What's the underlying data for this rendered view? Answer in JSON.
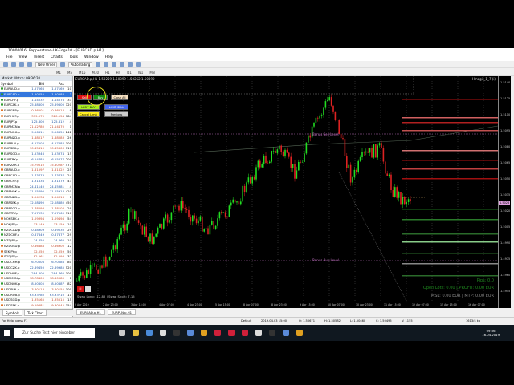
{
  "window": {
    "title": "10000016: Pepperstone-UK-Edge10 - [EURCAD.p,H1]"
  },
  "menu": [
    "File",
    "View",
    "Insert",
    "Charts",
    "Tools",
    "Window",
    "Help"
  ],
  "toolbar": {
    "new_order": "New Order",
    "autotrading": "AutoTrading",
    "timeframes": [
      "M1",
      "M5",
      "M15",
      "M30",
      "H1",
      "H4",
      "D1",
      "W1",
      "MN"
    ]
  },
  "market_watch": {
    "title": "Market Watch: 09:36:20",
    "columns": [
      "Symbol",
      "Bid",
      "Ask",
      "!"
    ],
    "rows": [
      [
        "EURAUD.p",
        "1.57066",
        "1.57169",
        "10",
        "up"
      ],
      [
        "EURCAD.p",
        "1.50055",
        "1.50288",
        "3",
        "up"
      ],
      [
        "EURCHF.p",
        "1.14032",
        "1.14076",
        "33",
        "up"
      ],
      [
        "EURCZK.p",
        "25.68600",
        "25.69600",
        "120",
        "up"
      ],
      [
        "EURGBP.p",
        "0.86501",
        "0.86518",
        "9",
        "down"
      ],
      [
        "EURHUF.p",
        "319.970",
        "320.154",
        "184",
        "down"
      ],
      [
        "EURJPY.p",
        "125.800",
        "125.812",
        "4",
        "up"
      ],
      [
        "EURMXN.p",
        "21.12780",
        "21.14470",
        "1",
        "down"
      ],
      [
        "EURNOK.p",
        "9.56611",
        "9.56655",
        "242",
        "up"
      ],
      [
        "EURNZD.p",
        "1.68017",
        "1.68083",
        "26",
        "down"
      ],
      [
        "EURPLN.p",
        "4.27504",
        "4.27684",
        "100",
        "up"
      ],
      [
        "EURSEK.p",
        "10.45410",
        "10.45603",
        "111",
        "down"
      ],
      [
        "EURSGD.p",
        "1.53346",
        "1.53374",
        "15",
        "up"
      ],
      [
        "EURTRY.p",
        "6.54785",
        "6.55877",
        "200",
        "up"
      ],
      [
        "EURZAR.p",
        "15.79510",
        "15.80287",
        "477",
        "down"
      ],
      [
        "GBPAUD.p",
        "1.81597",
        "1.81622",
        "25",
        "down"
      ],
      [
        "GBPCAD.p",
        "1.73773",
        "1.73737",
        "24",
        "up"
      ],
      [
        "GBPCHF.p",
        "1.31836",
        "1.31879",
        "43",
        "up"
      ],
      [
        "GBPMXN.p",
        "24.41140",
        "24.45381",
        "4",
        "up"
      ],
      [
        "GBPNOK.p",
        "11.05490",
        "11.05918",
        "420",
        "up"
      ],
      [
        "GBPNZD.p",
        "1.94234",
        "1.94316",
        "1",
        "down"
      ],
      [
        "GBPSEK.p",
        "12.08490",
        "12.08880",
        "450",
        "up"
      ],
      [
        "GBPSGD.p",
        "1.78093",
        "1.78104",
        "29",
        "down"
      ],
      [
        "GBPTRY.p",
        "7.57030",
        "7.57560",
        "310",
        "up"
      ],
      [
        "NOKSEK.p",
        "1.09394",
        "1.09498",
        "54",
        "down"
      ],
      [
        "NOKJPY.p",
        "13.149",
        "13.159",
        "10",
        "down"
      ],
      [
        "NZDCAD.p",
        "0.88909",
        "0.89030",
        "29",
        "up"
      ],
      [
        "NZDCHF.p",
        "0.67849",
        "0.67877",
        "29",
        "up"
      ],
      [
        "NZDJPY.p",
        "74.850",
        "74.860",
        "10",
        "up"
      ],
      [
        "NZDUSD.p",
        "0.66888",
        "0.66900",
        "12",
        "down"
      ],
      [
        "SEKJPY.p",
        "12.050",
        "12.059",
        "50",
        "down"
      ],
      [
        "SGDJPY.p",
        "82.561",
        "82.593",
        "32",
        "down"
      ],
      [
        "USDCNH.p",
        "6.70006",
        "6.70086",
        "80",
        "up"
      ],
      [
        "USDCZK.p",
        "22.69450",
        "22.69985",
        "520",
        "up"
      ],
      [
        "USDHUF.p",
        "284.600",
        "284.760",
        "100",
        "up"
      ],
      [
        "USDMXN.p",
        "18.78400",
        "18.80080",
        "1",
        "down"
      ],
      [
        "USDNOK.p",
        "8.50605",
        "8.50687",
        "82",
        "up"
      ],
      [
        "USDPLN.p",
        "3.80113",
        "3.80155",
        "100",
        "down"
      ],
      [
        "USDRUB.p",
        "63.93780",
        "63.93710",
        "11",
        "up"
      ],
      [
        "USDSGD.p",
        "1.35165",
        "1.35515",
        "15",
        "down"
      ],
      [
        "USDSEK.p",
        "9.29681",
        "9.30045",
        "154",
        "down"
      ],
      [
        "USDTHB.p",
        "31.81100",
        "31.87420",
        "240",
        "down"
      ]
    ],
    "tabs": [
      "Symbols",
      "Tick Chart"
    ]
  },
  "chart": {
    "header": "EURCAD.p,H1  1.50259 1.50399 1.50252 1.50390",
    "indicator": "Hmagit_1_7 (i)",
    "buttons": {
      "sell": "Sell",
      "buy": "Buy",
      "close_all": "Close All",
      "limit_buy": "LIMIT BUY",
      "limit_sell": "LIMIT SELL",
      "cancel_limit": "Cancel Limit",
      "previous": "Previous"
    },
    "bonus_sell": "Bonus Sell Level",
    "bonus_buy": "Bonus Buy Level",
    "swap": "Swap Long: -12.82 | Swap Short: 7.15",
    "pips": "Pips: 0.0",
    "open_lots": "Open Lots: 0.00 | PROFIT: 0.00 EUR",
    "msl": "MSL: 0.00 EUR | MTP: 0.00 EUR",
    "price_labels": [
      "1.5140",
      "1.5125",
      "1.5110",
      "1.5095",
      "1.5080",
      "1.5065",
      "1.5050",
      "1.5035",
      "1.5020",
      "1.5005",
      "1.4990",
      "1.4975",
      "1.4960",
      "1.4945"
    ],
    "current_price": "1.5028",
    "time_labels": [
      "2 Apr 2019",
      "2 Apr 23:00",
      "3 Apr 15:00",
      "4 Apr 07:00",
      "4 Apr 23:00",
      "5 Apr 15:00",
      "8 Apr 07:00",
      "8 Apr 23:00",
      "9 Apr 15:00",
      "10 Apr 07:00",
      "10 Apr 23:00",
      "11 Apr 15:00",
      "12 Apr 07:00",
      "15 Apr 15:00",
      "16 Apr 07:00"
    ],
    "colors": {
      "bull": "#22dd22",
      "bear": "#dd2222",
      "text_green": "#1f8a1f"
    }
  },
  "chart_tabs": [
    "EURCAD.p,H1",
    "EURPLN.p,H1"
  ],
  "status": {
    "help": "For Help, press F1",
    "profile": "Default",
    "time": "2019.04.03 15:00",
    "open": "O: 1.50671",
    "high": "H: 1.50582",
    "low": "L: 1.50460",
    "close": "C: 1.50495",
    "volume": "V: 1155",
    "traffic": "1613/4 kb"
  },
  "taskbar": {
    "search": "Zur Suche Text hier eingeben",
    "clock": "09:56",
    "date": "16.04.2019"
  }
}
